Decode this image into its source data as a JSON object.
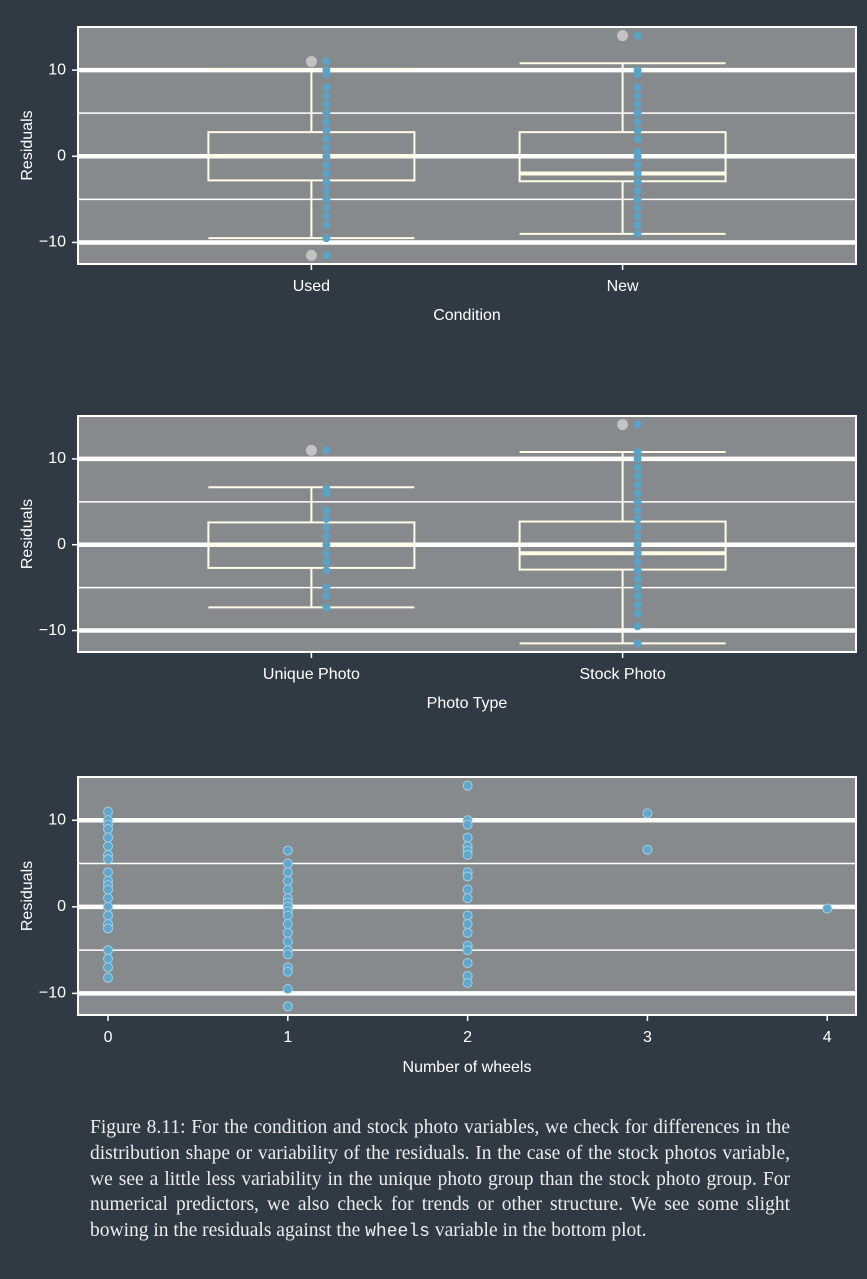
{
  "chart_data": [
    {
      "type": "box",
      "categories": [
        "Used",
        "New"
      ],
      "xlabel": "Condition",
      "ylabel": "Residuals",
      "boxes": [
        {
          "whisker_low": -9.5,
          "q1": -2.8,
          "median": 0,
          "q3": 2.8,
          "whisker_high": 10.1,
          "outliers": [
            11,
            -11.5
          ]
        },
        {
          "whisker_low": -9.0,
          "q1": -2.9,
          "median": -2.0,
          "q3": 2.8,
          "whisker_high": 10.8,
          "outliers": [
            14
          ]
        }
      ],
      "points": [
        [
          10,
          9.5,
          8,
          7,
          6,
          5,
          4,
          3,
          2,
          1,
          0,
          -1,
          -2,
          -3,
          -4,
          -5,
          -6,
          -7,
          -8,
          -9.5,
          11,
          -11.5
        ],
        [
          14,
          10,
          9.5,
          8,
          7,
          6,
          5,
          4,
          3,
          2,
          0.5,
          0,
          -1,
          -2,
          -3,
          -4,
          -5,
          -6,
          -7,
          -8,
          -9
        ]
      ],
      "ylim": [
        -12.5,
        15
      ],
      "yticks": [
        {
          "value": -10,
          "label": "−10"
        },
        0,
        10
      ],
      "minor_yticks": [
        -5,
        5
      ],
      "grid": true,
      "panel_color": "#878a8d",
      "box_color": "#fffde6",
      "point_color": "#5aa2c6",
      "outlier_color": "#c3c3c3"
    },
    {
      "type": "box",
      "categories": [
        "Unique Photo",
        "Stock Photo"
      ],
      "xlabel": "Photo Type",
      "ylabel": "Residuals",
      "boxes": [
        {
          "whisker_low": -7.3,
          "q1": -2.7,
          "median": 0,
          "q3": 2.6,
          "whisker_high": 6.7,
          "outliers": [
            11
          ]
        },
        {
          "whisker_low": -11.5,
          "q1": -2.9,
          "median": -1.0,
          "q3": 2.7,
          "whisker_high": 10.8,
          "outliers": [
            14
          ]
        }
      ],
      "points": [
        [
          11,
          6.5,
          6,
          4,
          3,
          2,
          1,
          0,
          -1,
          -2,
          -3,
          -5,
          -6,
          -7.3
        ],
        [
          14,
          10.8,
          10,
          9,
          8,
          7,
          6,
          5,
          4,
          3,
          2,
          1,
          0,
          -1,
          -2,
          -3,
          -4,
          -5,
          -6,
          -7,
          -8,
          -9.5,
          -11.5
        ]
      ],
      "ylim": [
        -12.5,
        15
      ],
      "yticks": [
        {
          "value": -10,
          "label": "−10"
        },
        0,
        10
      ],
      "minor_yticks": [
        -5,
        5
      ],
      "grid": true,
      "panel_color": "#878a8d",
      "box_color": "#fffde6",
      "point_color": "#5aa2c6",
      "outlier_color": "#c3c3c3"
    },
    {
      "type": "scatter",
      "xlabel": "Number of wheels",
      "ylabel": "Residuals",
      "x": [
        0,
        0,
        0,
        0,
        0,
        0,
        0,
        0,
        0,
        0,
        0,
        0,
        0,
        0,
        0,
        0,
        0,
        0,
        0,
        0,
        0,
        1,
        1,
        1,
        1,
        1,
        1,
        1,
        1,
        1,
        1,
        1,
        1,
        1,
        1,
        1,
        1,
        1,
        1,
        1,
        2,
        2,
        2,
        2,
        2,
        2,
        2,
        2,
        2,
        2,
        2,
        2,
        2,
        2,
        2,
        2,
        2,
        2,
        2,
        3,
        3,
        4
      ],
      "y": [
        11,
        10,
        9.5,
        9,
        8,
        7,
        6,
        5.5,
        4,
        3,
        2.5,
        2,
        1,
        0,
        -1,
        -2,
        -2.5,
        -5,
        -6,
        -7,
        -8.2,
        6.5,
        5,
        4,
        3,
        2,
        1,
        0.5,
        0,
        -0.5,
        -1,
        -2,
        -3,
        -4,
        -5,
        -5.5,
        -7,
        -7.5,
        -9.5,
        -11.5,
        14,
        10,
        9.5,
        8,
        7,
        6.5,
        6,
        4,
        3.5,
        2,
        1,
        -1,
        -2,
        -3,
        -4.5,
        -5,
        -6.5,
        -8,
        -8.8,
        10.8,
        6.6,
        -0.2
      ],
      "xlim": [
        -0.167,
        4.16
      ],
      "xticks": [
        0,
        1,
        2,
        3,
        4
      ],
      "ylim": [
        -12.5,
        15
      ],
      "yticks": [
        {
          "value": -10,
          "label": "−10"
        },
        0,
        10
      ],
      "minor_yticks": [
        -5,
        5
      ],
      "grid": true,
      "panel_color": "#878a8d",
      "point_color": "#5fa8cc"
    }
  ],
  "caption": [
    "Figure 8.11: For the condition and stock photo variables, we check for differences in the distribution shape or variability of the residuals. In the case of the stock photos variable, we see a little less variability in the unique photo group than the stock photo group. For numerical predictors, we also check for trends or other structure.  We see some slight bowing in the residuals against the ",
    "wheels",
    " variable in the bottom plot."
  ]
}
